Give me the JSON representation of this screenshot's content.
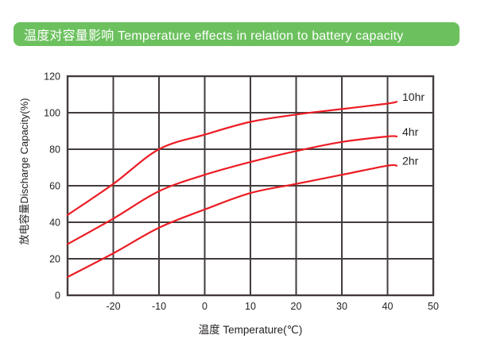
{
  "header": {
    "title": "温度对容量影响 Temperature effects in relation to battery capacity",
    "bg_color": "#6cc15e",
    "text_color": "#ffffff"
  },
  "chart_data": {
    "type": "line",
    "x": [
      -30,
      -20,
      -10,
      0,
      10,
      20,
      30,
      40,
      42
    ],
    "series": [
      {
        "name": "10hr",
        "values": [
          44,
          61,
          80,
          88,
          95,
          99,
          102,
          105,
          106
        ]
      },
      {
        "name": "4hr",
        "values": [
          28,
          42,
          57,
          66,
          73,
          79,
          84,
          87,
          87
        ]
      },
      {
        "name": "2hr",
        "values": [
          10,
          23,
          37,
          47,
          56,
          61,
          66,
          71,
          71
        ]
      }
    ],
    "xlabel": "温度 Temperature(℃)",
    "ylabel": "放电容量Discharge Capacity(%)",
    "xlim": [
      -30,
      50
    ],
    "ylim": [
      0,
      120
    ],
    "x_ticks": [
      -20,
      -10,
      0,
      10,
      20,
      30,
      40,
      50
    ],
    "y_ticks": [
      0,
      20,
      40,
      60,
      80,
      100,
      120
    ],
    "grid": true,
    "legend_position": "right-of-line-end",
    "line_color": "#ec1c24",
    "grid_color": "#433c3c",
    "tick_color": "#231f20"
  }
}
